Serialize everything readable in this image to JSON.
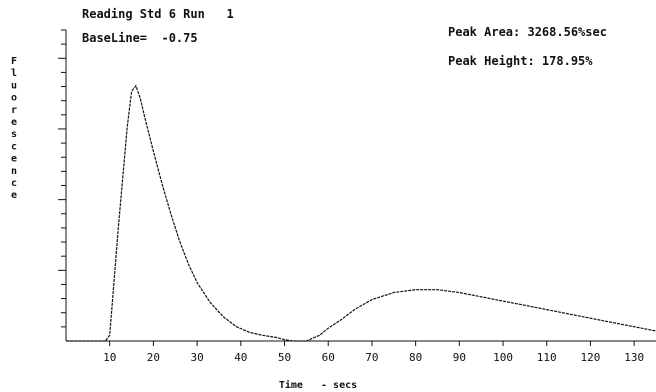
{
  "chart_data": {
    "type": "line",
    "title_lines": [
      "Reading Std 6 Run   1",
      "BaseLine=  -0.75"
    ],
    "annotations": [
      "Peak Area: 3268.56%sec",
      "Peak Height: 178.95%"
    ],
    "ylabel": "Fluorescence",
    "xlabel": "Time   - secs",
    "xlim": [
      0,
      135
    ],
    "ylim": [
      0,
      190
    ],
    "x_ticks": [
      10,
      20,
      30,
      40,
      50,
      60,
      70,
      80,
      90,
      100,
      110,
      120,
      130
    ],
    "y_tick_count": 22,
    "series": [
      {
        "x": [
          0,
          9,
          10,
          12,
          14,
          15,
          16,
          17,
          18,
          20,
          22,
          24,
          26,
          28,
          30,
          33,
          36,
          39,
          42,
          45,
          48,
          50,
          52,
          55,
          58,
          60,
          63,
          66,
          70,
          75,
          80,
          85,
          90,
          95,
          100,
          105,
          110,
          115,
          120,
          125,
          130,
          135
        ],
        "y": [
          0,
          0,
          4,
          80,
          150,
          175,
          178.95,
          170,
          157,
          133,
          110,
          89,
          70,
          54,
          41,
          27,
          17,
          10,
          6,
          4,
          2.5,
          1,
          0,
          0,
          4,
          9,
          15,
          22,
          29,
          34,
          36,
          36,
          34,
          31,
          28,
          25,
          22,
          19,
          16,
          13,
          10,
          7
        ]
      }
    ]
  }
}
